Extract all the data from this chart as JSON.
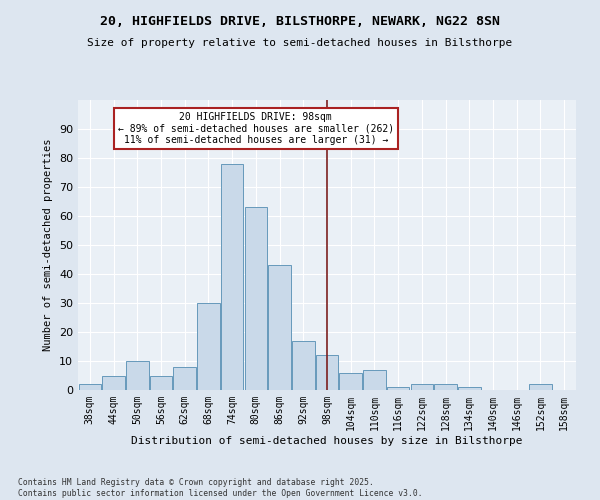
{
  "title_line1": "20, HIGHFIELDS DRIVE, BILSTHORPE, NEWARK, NG22 8SN",
  "title_line2": "Size of property relative to semi-detached houses in Bilsthorpe",
  "xlabel": "Distribution of semi-detached houses by size in Bilsthorpe",
  "ylabel": "Number of semi-detached properties",
  "bin_labels": [
    "38sqm",
    "44sqm",
    "50sqm",
    "56sqm",
    "62sqm",
    "68sqm",
    "74sqm",
    "80sqm",
    "86sqm",
    "92sqm",
    "98sqm",
    "104sqm",
    "110sqm",
    "116sqm",
    "122sqm",
    "128sqm",
    "134sqm",
    "140sqm",
    "146sqm",
    "152sqm",
    "158sqm"
  ],
  "bin_edges": [
    35,
    41,
    47,
    53,
    59,
    65,
    71,
    77,
    83,
    89,
    95,
    101,
    107,
    113,
    119,
    125,
    131,
    137,
    143,
    149,
    155,
    161
  ],
  "counts": [
    2,
    5,
    10,
    5,
    8,
    30,
    78,
    63,
    43,
    17,
    12,
    6,
    7,
    1,
    2,
    2,
    1,
    0,
    0,
    2,
    0
  ],
  "bar_facecolor": "#c9d9e9",
  "bar_edgecolor": "#6699bb",
  "vline_x": 98,
  "vline_color": "#7b2020",
  "annotation_title": "20 HIGHFIELDS DRIVE: 98sqm",
  "annotation_line2": "← 89% of semi-detached houses are smaller (262)",
  "annotation_line3": "11% of semi-detached houses are larger (31) →",
  "annotation_box_color": "#aa2222",
  "ylim": [
    0,
    100
  ],
  "yticks": [
    0,
    10,
    20,
    30,
    40,
    50,
    60,
    70,
    80,
    90,
    100
  ],
  "footer_line1": "Contains HM Land Registry data © Crown copyright and database right 2025.",
  "footer_line2": "Contains public sector information licensed under the Open Government Licence v3.0.",
  "bg_color": "#dde6f0",
  "plot_bg_color": "#eaf0f6"
}
